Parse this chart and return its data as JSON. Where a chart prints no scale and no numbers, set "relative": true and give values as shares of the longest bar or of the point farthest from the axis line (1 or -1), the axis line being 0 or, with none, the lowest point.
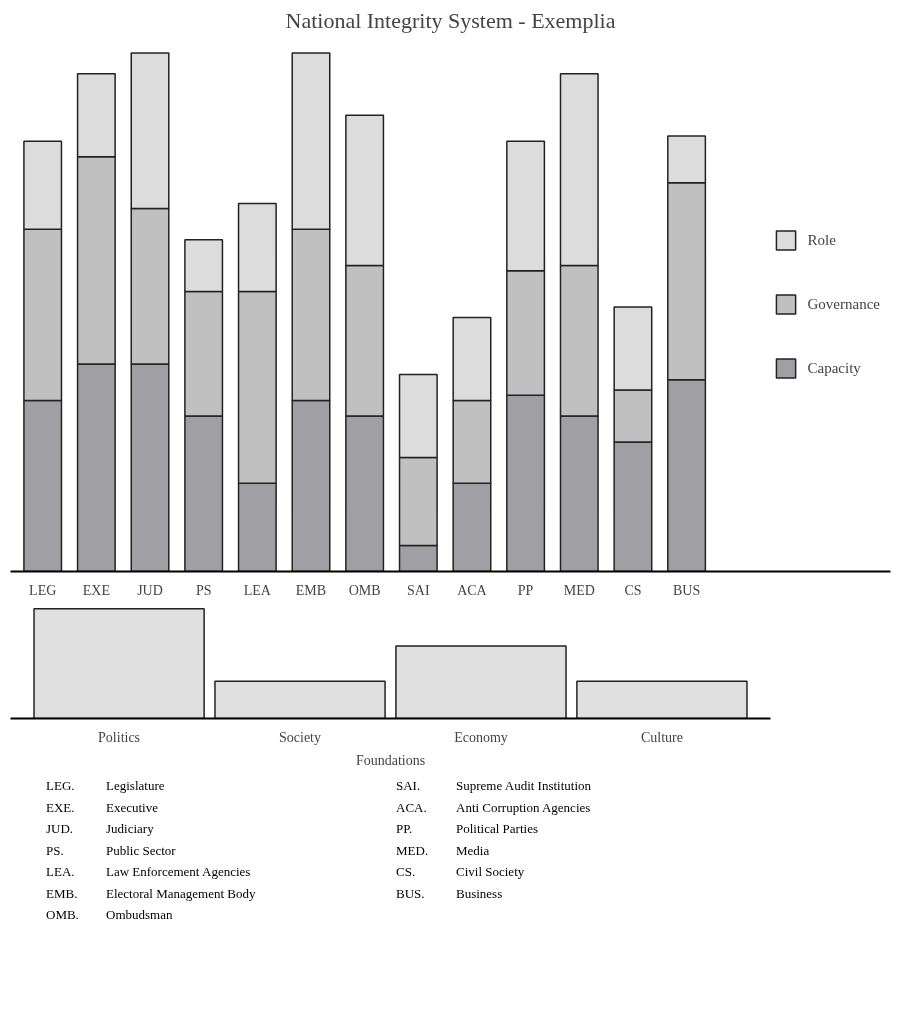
{
  "chart_data": [
    {
      "type": "bar",
      "title": "National Integrity System - Exemplia",
      "relative": true,
      "stacked": true,
      "legend": "right",
      "categories": [
        "LEG",
        "EXE",
        "JUD",
        "PS",
        "LEA",
        "EMB",
        "OMB",
        "SAI",
        "ACA",
        "PP",
        "MED",
        "CS",
        "BUS"
      ],
      "series": [
        {
          "name": "Capacity",
          "color": "#a0a0a4",
          "values": [
            0.33,
            0.4,
            0.4,
            0.3,
            0.17,
            0.33,
            0.3,
            0.05,
            0.17,
            0.34,
            0.3,
            0.25,
            0.37
          ]
        },
        {
          "name": "Governance",
          "color": "#c0c0c0",
          "values": [
            0.33,
            0.4,
            0.3,
            0.24,
            0.37,
            0.33,
            0.29,
            0.17,
            0.16,
            0.24,
            0.29,
            0.1,
            0.38
          ]
        },
        {
          "name": "Role",
          "color": "#dcdcdc",
          "values": [
            0.17,
            0.16,
            0.3,
            0.1,
            0.17,
            0.34,
            0.29,
            0.16,
            0.16,
            0.25,
            0.37,
            0.16,
            0.09
          ]
        }
      ]
    },
    {
      "type": "bar",
      "relative": true,
      "xlabel": "Foundations",
      "categories": [
        "Politics",
        "Society",
        "Economy",
        "Culture"
      ],
      "series": [
        {
          "color": "#e0e0e0",
          "values": [
            1,
            0.34,
            0.66,
            0.34
          ]
        }
      ],
      "annotations": [
        "LEG. Legislature",
        "EXE. Executive",
        "JUD. Judiciary",
        "PS. Public Sector",
        "LEA. Law Enforcement Agencies",
        "EMB. Electoral Management Body",
        "OMB. Ombudsman",
        "SAI. Supreme Audit Institution",
        "ACA. Anti Corruption Agencies",
        "PP. Political Parties",
        "MED. Media",
        "CS. Civil Society",
        "BUS. Business"
      ]
    }
  ]
}
